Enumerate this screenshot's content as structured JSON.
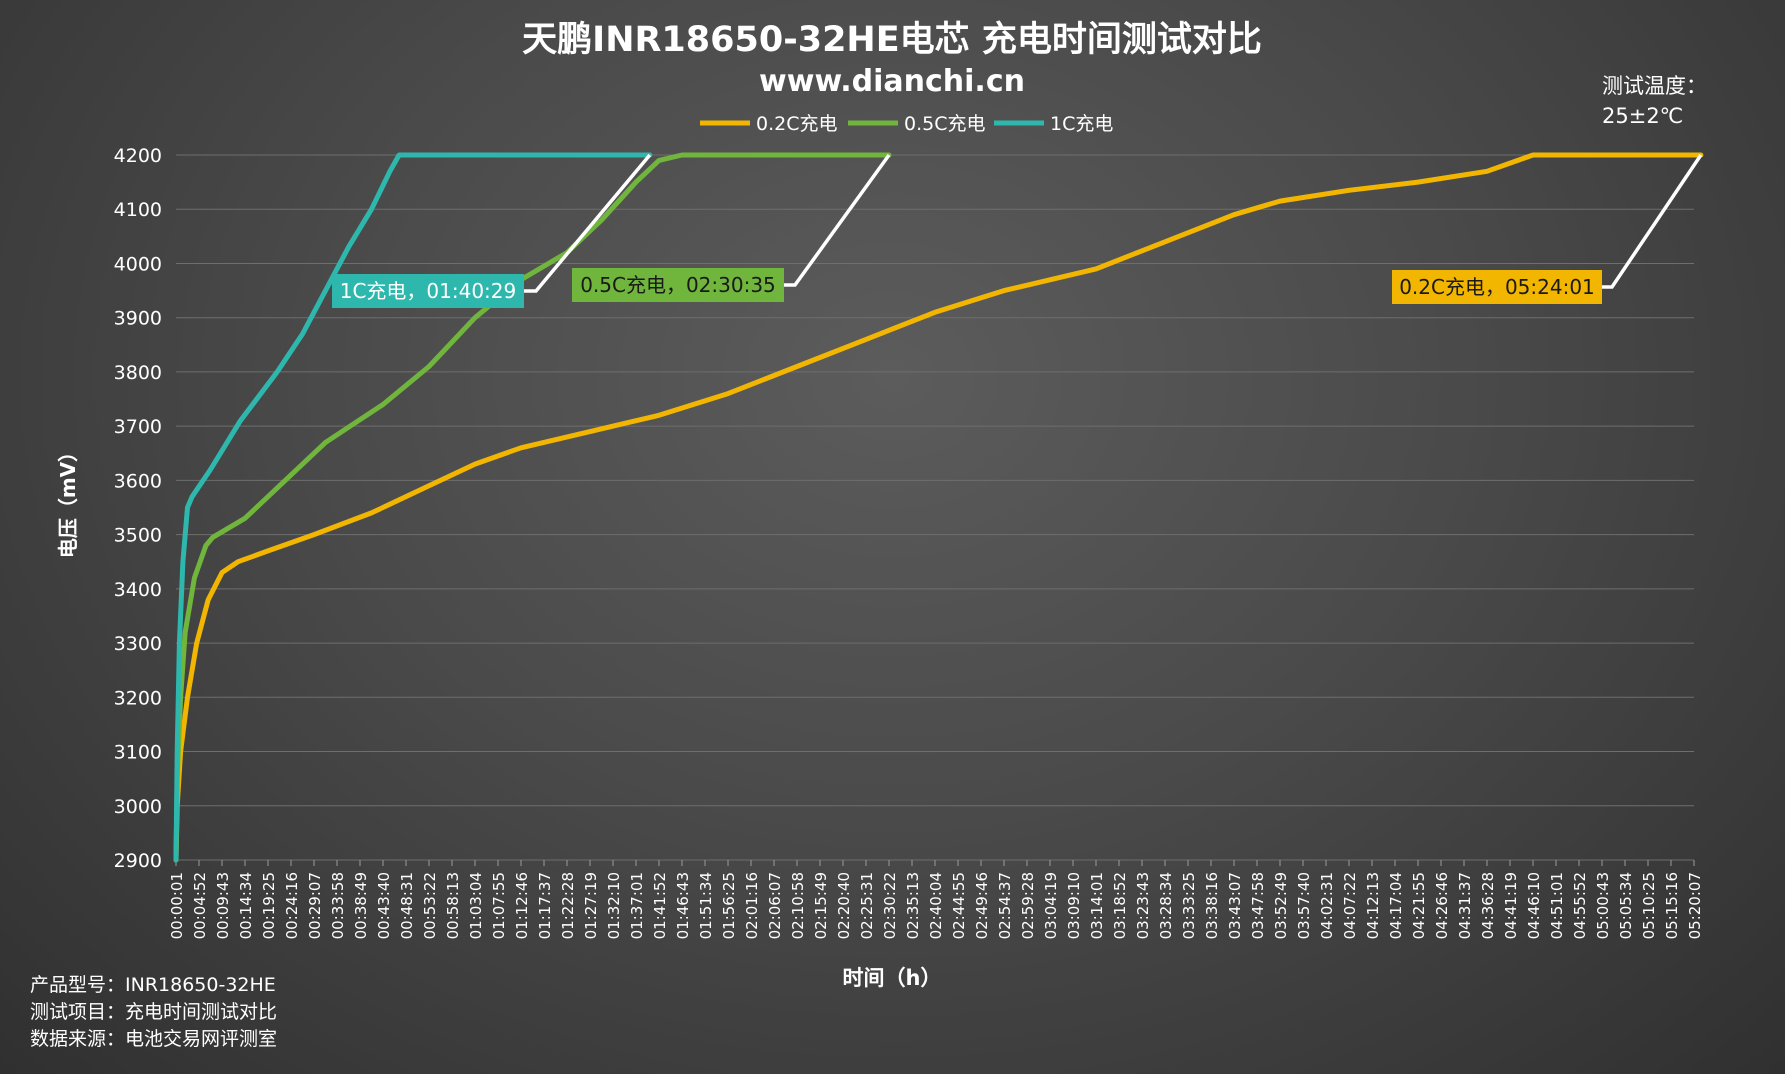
{
  "chart_data": {
    "type": "line",
    "title": "天鹏INR18650-32HE电芯 充电时间测试对比",
    "subtitle": "www.dianchi.cn",
    "xlabel": "时间（h）",
    "ylabel": "电压（mV）",
    "ylim": [
      2900,
      4200
    ],
    "yticks": [
      2900,
      3000,
      3100,
      3200,
      3300,
      3400,
      3500,
      3600,
      3700,
      3800,
      3900,
      4000,
      4100,
      4200
    ],
    "grid": true,
    "legend_position": "top-center",
    "x_categories": [
      "00:00:01",
      "00:04:52",
      "00:09:43",
      "00:14:34",
      "00:19:25",
      "00:24:16",
      "00:29:07",
      "00:33:58",
      "00:38:49",
      "00:43:40",
      "00:48:31",
      "00:53:22",
      "00:58:13",
      "01:03:04",
      "01:07:55",
      "01:12:46",
      "01:17:37",
      "01:22:28",
      "01:27:19",
      "01:32:10",
      "01:37:01",
      "01:41:52",
      "01:46:43",
      "01:51:34",
      "01:56:25",
      "02:01:16",
      "02:06:07",
      "02:10:58",
      "02:15:49",
      "02:20:40",
      "02:25:31",
      "02:30:22",
      "02:35:13",
      "02:40:04",
      "02:44:55",
      "02:49:46",
      "02:54:37",
      "02:59:28",
      "03:04:19",
      "03:09:10",
      "03:14:01",
      "03:18:52",
      "03:23:43",
      "03:28:34",
      "03:33:25",
      "03:38:16",
      "03:43:07",
      "03:47:58",
      "03:52:49",
      "03:57:40",
      "04:02:31",
      "04:07:22",
      "04:12:13",
      "04:17:04",
      "04:21:55",
      "04:26:46",
      "04:31:37",
      "04:36:28",
      "04:41:19",
      "04:46:10",
      "04:51:01",
      "04:55:52",
      "05:00:43",
      "05:05:34",
      "05:10:25",
      "05:15:16",
      "05:20:07"
    ],
    "series": [
      {
        "name": "0.2C充电",
        "color": "#f2b600",
        "points": [
          [
            0,
            2900
          ],
          [
            0.05,
            3000
          ],
          [
            0.2,
            3100
          ],
          [
            0.5,
            3200
          ],
          [
            0.9,
            3300
          ],
          [
            1.4,
            3380
          ],
          [
            2,
            3430
          ],
          [
            2.7,
            3450
          ],
          [
            4,
            3470
          ],
          [
            6,
            3500
          ],
          [
            8.5,
            3540
          ],
          [
            11,
            3590
          ],
          [
            13,
            3630
          ],
          [
            15,
            3660
          ],
          [
            18,
            3690
          ],
          [
            21,
            3720
          ],
          [
            24,
            3760
          ],
          [
            27,
            3810
          ],
          [
            30,
            3860
          ],
          [
            33,
            3910
          ],
          [
            36,
            3950
          ],
          [
            40,
            3990
          ],
          [
            43,
            4040
          ],
          [
            46,
            4090
          ],
          [
            48,
            4115
          ],
          [
            51,
            4135
          ],
          [
            54,
            4150
          ],
          [
            57,
            4170
          ],
          [
            59,
            4200
          ],
          [
            66.3,
            4200
          ]
        ],
        "end_label": "0.2C充电，05:24:01",
        "end_time": "05:24:01"
      },
      {
        "name": "0.5C充电",
        "color": "#70b53c",
        "points": [
          [
            0,
            2900
          ],
          [
            0.05,
            3050
          ],
          [
            0.2,
            3200
          ],
          [
            0.4,
            3320
          ],
          [
            0.8,
            3420
          ],
          [
            1.3,
            3480
          ],
          [
            1.6,
            3495
          ],
          [
            3,
            3530
          ],
          [
            4.5,
            3590
          ],
          [
            6.5,
            3670
          ],
          [
            9,
            3740
          ],
          [
            11,
            3810
          ],
          [
            13,
            3900
          ],
          [
            15,
            3970
          ],
          [
            17,
            4020
          ],
          [
            18.5,
            4080
          ],
          [
            20,
            4150
          ],
          [
            21,
            4190
          ],
          [
            22,
            4200
          ],
          [
            31,
            4200
          ]
        ],
        "end_label": "0.5C充电，02:30:35",
        "end_time": "02:30:35"
      },
      {
        "name": "1C充电",
        "color": "#2eb8ad",
        "points": [
          [
            0,
            2900
          ],
          [
            0.05,
            3100
          ],
          [
            0.15,
            3300
          ],
          [
            0.3,
            3450
          ],
          [
            0.5,
            3550
          ],
          [
            0.7,
            3570
          ],
          [
            1.5,
            3620
          ],
          [
            2.8,
            3710
          ],
          [
            4.4,
            3800
          ],
          [
            5.5,
            3870
          ],
          [
            6.5,
            3950
          ],
          [
            7.5,
            4030
          ],
          [
            8.5,
            4100
          ],
          [
            9.3,
            4170
          ],
          [
            9.7,
            4200
          ],
          [
            20.6,
            4200
          ]
        ],
        "end_label": "1C充电，01:40:29",
        "end_time": "01:40:29"
      }
    ]
  },
  "test_temperature": {
    "label": "测试温度：",
    "value": "25±2℃"
  },
  "footer": {
    "model": "产品型号：INR18650-32HE",
    "item": "测试项目：充电时间测试对比",
    "source": "数据来源：电池交易网评测室"
  }
}
